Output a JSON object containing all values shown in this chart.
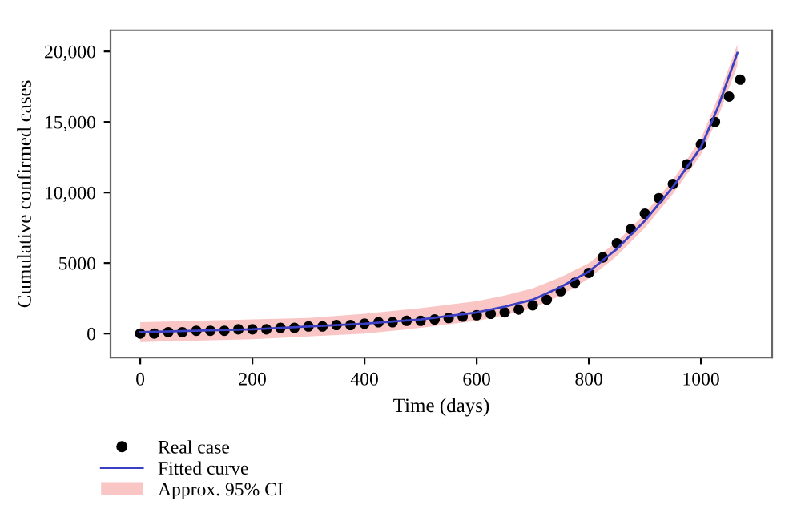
{
  "chart_data": {
    "type": "line",
    "xlabel": "Time (days)",
    "ylabel": "Cumulative confirmed cases",
    "xlim": [
      -53,
      1127
    ],
    "ylim": [
      -1700,
      21500
    ],
    "xticks": [
      0,
      200,
      400,
      600,
      800,
      1000
    ],
    "yticks": [
      0,
      5000,
      {
        "value": 10000,
        "label": "10,000"
      },
      {
        "value": 15000,
        "label": "15,000"
      },
      {
        "value": 20000,
        "label": "20,000"
      }
    ],
    "grid": false,
    "legend": "bottom left",
    "annotations": [
      "Approx. 95% CI"
    ],
    "series": [
      {
        "name": "Real case",
        "type": "scatter",
        "marker": "circle",
        "color": "#000000",
        "x": [
          0,
          25,
          50,
          75,
          100,
          125,
          150,
          175,
          200,
          225,
          250,
          275,
          300,
          325,
          350,
          375,
          400,
          425,
          450,
          475,
          500,
          525,
          550,
          575,
          600,
          625,
          650,
          675,
          700,
          725,
          750,
          775,
          800,
          825,
          850,
          875,
          900,
          925,
          950,
          975,
          1000,
          1025,
          1050,
          1070
        ],
        "values": [
          0,
          0,
          100,
          100,
          200,
          200,
          200,
          300,
          300,
          300,
          400,
          400,
          500,
          500,
          600,
          600,
          700,
          800,
          800,
          900,
          900,
          1000,
          1100,
          1200,
          1300,
          1400,
          1500,
          1700,
          2000,
          2400,
          3000,
          3600,
          4300,
          5400,
          6400,
          7400,
          8500,
          9600,
          10600,
          12000,
          13400,
          15000,
          16800,
          18000
        ]
      },
      {
        "name": "Fitted curve",
        "marker": "none",
        "color": "#3a3fc4",
        "x": [
          0,
          100,
          200,
          300,
          400,
          500,
          600,
          650,
          700,
          750,
          800,
          850,
          900,
          950,
          1000,
          1030,
          1065
        ],
        "values": [
          100,
          200,
          300,
          500,
          700,
          1000,
          1500,
          1900,
          2400,
          3300,
          4400,
          6000,
          8000,
          10400,
          13200,
          16000,
          19900
        ],
        "lower": [
          -600,
          -500,
          -400,
          -200,
          0,
          400,
          900,
          1300,
          1800,
          2700,
          3900,
          5500,
          7500,
          9900,
          12700,
          15300,
          19000
        ],
        "upper": [
          800,
          900,
          1000,
          1100,
          1400,
          1800,
          2300,
          2700,
          3200,
          4000,
          5000,
          6500,
          8500,
          10900,
          13800,
          16700,
          20500
        ]
      }
    ]
  }
}
